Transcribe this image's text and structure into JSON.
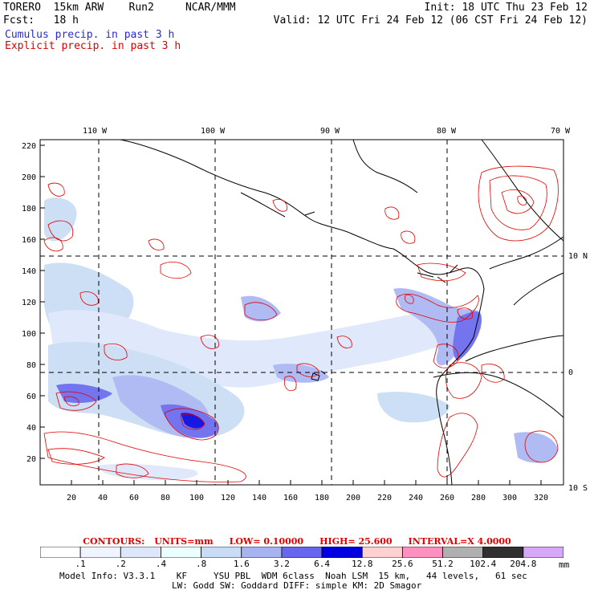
{
  "header": {
    "model": "TORERO  15km ARW    Run2     NCAR/MMM",
    "init": "Init: 18 UTC Thu 23 Feb 12",
    "fcst": "Fcst:   18 h",
    "valid": "Valid: 12 UTC Fri 24 Feb 12 (06 CST Fri 24 Feb 12)"
  },
  "legend": {
    "cumulus": "Cumulus precip. in past 3 h",
    "explicit": "Explicit precip. in past 3 h"
  },
  "map": {
    "lon_labels": [
      "110 W",
      "100 W",
      "90 W",
      "80 W",
      "70 W"
    ],
    "lat_labels": [
      "10 N",
      "0",
      "10 S"
    ],
    "y_ticks": [
      "220",
      "200",
      "180",
      "160",
      "140",
      "120",
      "100",
      "80",
      "60",
      "40",
      "20"
    ],
    "x_ticks": [
      "20",
      "40",
      "60",
      "80",
      "100",
      "120",
      "140",
      "160",
      "180",
      "200",
      "220",
      "240",
      "260",
      "280",
      "300",
      "320"
    ],
    "colors": {
      "land_outline": "#000000",
      "explicit_contour": "#e00000",
      "grid": "#000000"
    }
  },
  "contours_line": {
    "label": "CONTOURS:",
    "units": "UNITS=mm",
    "low": "LOW= 0.10000",
    "high": "HIGH=  25.600",
    "interval": "INTERVAL=X  4.0000"
  },
  "colorbar": {
    "labels": [
      ".1",
      ".2",
      ".4",
      ".8",
      "1.6",
      "3.2",
      "6.4",
      "12.8",
      "25.6",
      "51.2",
      "102.4",
      "204.8"
    ],
    "unit": "mm",
    "colors": [
      "#ffffff",
      "#f0f4ff",
      "#dde6fb",
      "#eaffff",
      "#c8dcf5",
      "#a8b4f2",
      "#6666ee",
      "#0000e0",
      "#ffd0d0",
      "#ff90c0",
      "#b0b0b0",
      "#303030",
      "#d8a8f8"
    ]
  },
  "model_info": {
    "line1": "Model Info: V3.3.1    KF     YSU PBL  WDM 6class  Noah LSM  15 km,   44 levels,   61 sec",
    "line2": "LW: Godd SW: Goddard DIFF: simple KM: 2D Smagor"
  }
}
